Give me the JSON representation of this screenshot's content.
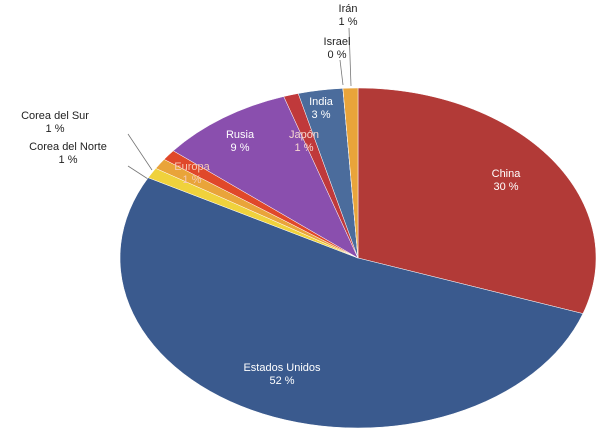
{
  "chart_data": {
    "type": "pie",
    "categories": [
      "China",
      "Estados Unidos",
      "Corea del Norte",
      "Corea del Sur",
      "Europa",
      "Rusia",
      "Japón",
      "India",
      "Israel",
      "Irán"
    ],
    "values": [
      30,
      52,
      1,
      1,
      1,
      9,
      1,
      3,
      0,
      1
    ],
    "value_labels": [
      "30 %",
      "52 %",
      "1 %",
      "1 %",
      "1 %",
      "9 %",
      "1 %",
      "3 %",
      "0 %",
      "1 %"
    ],
    "colors": [
      "#b23a37",
      "#3a5a8e",
      "#f0d23c",
      "#e9a43a",
      "#e0482a",
      "#8a4fae",
      "#c0393b",
      "#4b6c9c",
      "#f0d23c",
      "#e9a43a"
    ]
  }
}
